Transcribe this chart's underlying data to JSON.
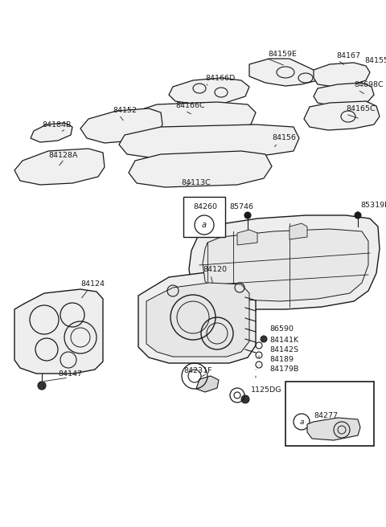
{
  "bg_color": "#ffffff",
  "line_color": "#1a1a1a",
  "text_color": "#1a1a1a",
  "figsize": [
    4.8,
    6.56
  ],
  "dpi": 100,
  "xlim": [
    0,
    480
  ],
  "ylim": [
    0,
    656
  ]
}
